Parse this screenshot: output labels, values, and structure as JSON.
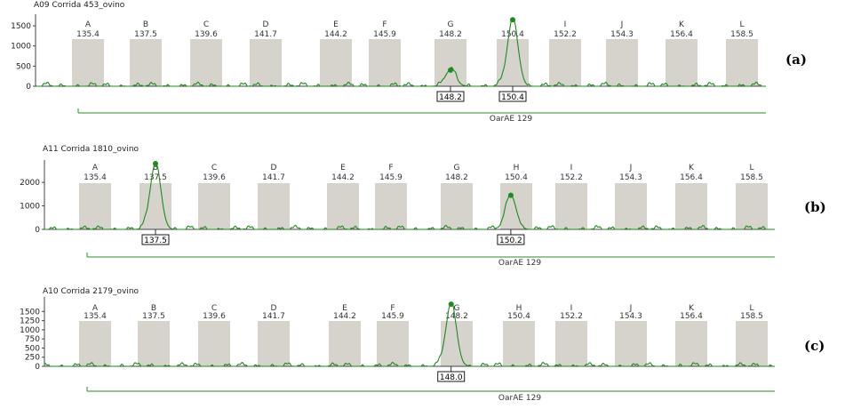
{
  "figure": {
    "chart_data": [
      {
        "type": "line",
        "panel_label": "(a)",
        "title": "A09 Corrida 453_ovino",
        "marker": "OarAE 129",
        "ylim": [
          0,
          1700
        ],
        "yticks": [
          0,
          500,
          1000,
          1500
        ],
        "bins": [
          {
            "letter": "A",
            "size": "135.4"
          },
          {
            "letter": "B",
            "size": "137.5"
          },
          {
            "letter": "C",
            "size": "139.6"
          },
          {
            "letter": "D",
            "size": "141.7"
          },
          {
            "letter": "E",
            "size": "144.2"
          },
          {
            "letter": "F",
            "size": "145.9"
          },
          {
            "letter": "G",
            "size": "148.2"
          },
          {
            "letter": "",
            "size": "150.4"
          },
          {
            "letter": "I",
            "size": "152.2"
          },
          {
            "letter": "J",
            "size": "154.3"
          },
          {
            "letter": "K",
            "size": "156.4"
          },
          {
            "letter": "L",
            "size": "158.5"
          }
        ],
        "peaks": [
          {
            "size": 148.2,
            "height": 400,
            "label": "148.2"
          },
          {
            "size": 150.4,
            "height": 1650,
            "label": "150.4"
          }
        ]
      },
      {
        "type": "line",
        "panel_label": "(b)",
        "title": "A11 Corrida 1810_ovino",
        "marker": "OarAE 129",
        "ylim": [
          0,
          2800
        ],
        "yticks": [
          0,
          1000,
          2000
        ],
        "bins": [
          {
            "letter": "A",
            "size": "135.4"
          },
          {
            "letter": "B",
            "size": "137.5"
          },
          {
            "letter": "C",
            "size": "139.6"
          },
          {
            "letter": "D",
            "size": "141.7"
          },
          {
            "letter": "E",
            "size": "144.2"
          },
          {
            "letter": "F",
            "size": "145.9"
          },
          {
            "letter": "G",
            "size": "148.2"
          },
          {
            "letter": "H",
            "size": "150.4"
          },
          {
            "letter": "I",
            "size": "152.2"
          },
          {
            "letter": "J",
            "size": "154.3"
          },
          {
            "letter": "K",
            "size": "156.4"
          },
          {
            "letter": "L",
            "size": "158.5"
          }
        ],
        "peaks": [
          {
            "size": 137.5,
            "height": 2800,
            "label": "137.5"
          },
          {
            "size": 150.2,
            "height": 1450,
            "label": "150.2"
          }
        ]
      },
      {
        "type": "line",
        "panel_label": "(c)",
        "title": "A10 Corrida 2179_ovino",
        "marker": "OarAE 129",
        "ylim": [
          0,
          1800
        ],
        "yticks": [
          0,
          250,
          500,
          750,
          1000,
          1250,
          1500
        ],
        "bins": [
          {
            "letter": "A",
            "size": "135.4"
          },
          {
            "letter": "B",
            "size": "137.5"
          },
          {
            "letter": "C",
            "size": "139.6"
          },
          {
            "letter": "D",
            "size": "141.7"
          },
          {
            "letter": "E",
            "size": "144.2"
          },
          {
            "letter": "F",
            "size": "145.9"
          },
          {
            "letter": "G",
            "size": "148.2"
          },
          {
            "letter": "H",
            "size": "150.4"
          },
          {
            "letter": "I",
            "size": "152.2"
          },
          {
            "letter": "J",
            "size": "154.3"
          },
          {
            "letter": "K",
            "size": "156.4"
          },
          {
            "letter": "L",
            "size": "158.5"
          }
        ],
        "peaks": [
          {
            "size": 148.0,
            "height": 1700,
            "label": "148.0"
          }
        ]
      }
    ],
    "colors": {
      "trace": "#1f8a1f",
      "bin_fill": "#d6d2cc",
      "marker_line": "#2e8b2e",
      "axis": "#444444"
    }
  }
}
